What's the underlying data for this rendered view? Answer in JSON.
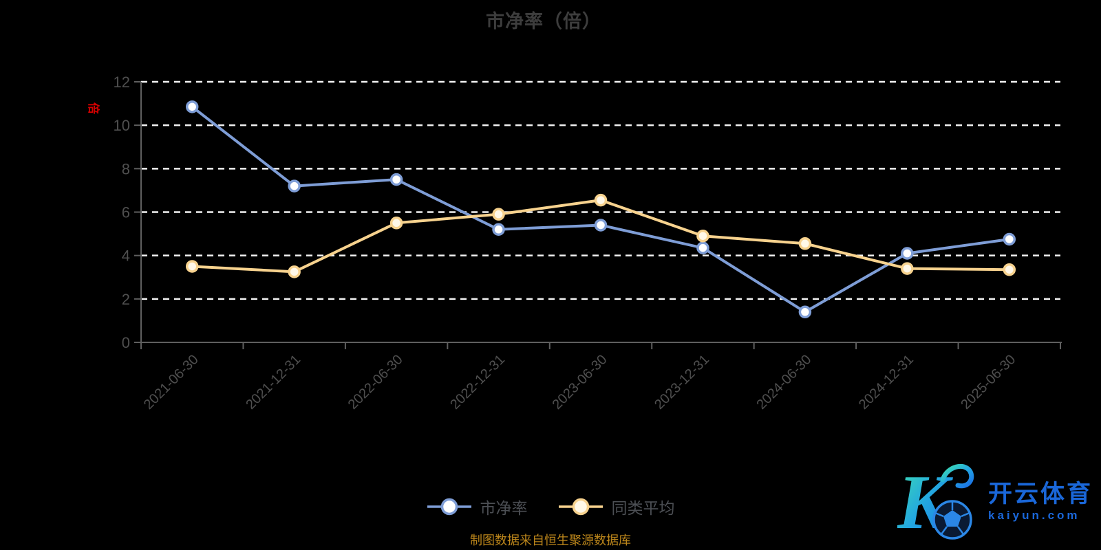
{
  "title": "市净率（倍）",
  "y_axis_unit": "倍",
  "footer_note": "制图数据来自恒生聚源数据库",
  "legend": {
    "position": "bottom",
    "items": [
      {
        "name": "市净率"
      },
      {
        "name": "同类平均"
      }
    ]
  },
  "logo": {
    "letter": "K",
    "brand_cn": "开云体育",
    "brand_domain": "kaiyun.com"
  },
  "colors": {
    "background": "#000000",
    "title_text": "#3d3d3d",
    "axis_line": "#5f5f5f",
    "axis_label": "#4f4f4f",
    "grid_line": "#f2f2f2",
    "unit_label": "#d40000",
    "legend_text": "#4c4f54",
    "footer_text": "#bc861b",
    "logo_blue": "#1a67d9",
    "logo_gradient_start": "#3fe3ae",
    "logo_gradient_end": "#1b6fe6"
  },
  "chart_data": {
    "type": "line",
    "title": "市净率（倍）",
    "xlabel": "",
    "ylabel": "倍",
    "x": [
      "2021-06-30",
      "2021-12-31",
      "2022-06-30",
      "2022-12-31",
      "2023-06-30",
      "2023-12-31",
      "2024-06-30",
      "2024-12-31",
      "2025-06-30"
    ],
    "series": [
      {
        "name": "市净率",
        "color": "#7E9DD6",
        "marker_fill": "#FFFFFF",
        "values": [
          10.85,
          7.2,
          7.5,
          5.2,
          5.4,
          4.35,
          1.4,
          4.1,
          4.75
        ]
      },
      {
        "name": "同类平均",
        "color": "#F7D28E",
        "marker_fill": "#FFF8E8",
        "values": [
          3.5,
          3.25,
          5.5,
          5.9,
          6.55,
          4.9,
          4.55,
          3.4,
          3.35
        ]
      }
    ],
    "ylim": [
      0,
      12
    ],
    "y_ticks": [
      0,
      2,
      4,
      6,
      8,
      10,
      12
    ],
    "grid": "horizontal-dashed-white",
    "x_label_rotate": 45,
    "legend_position": "bottom"
  }
}
